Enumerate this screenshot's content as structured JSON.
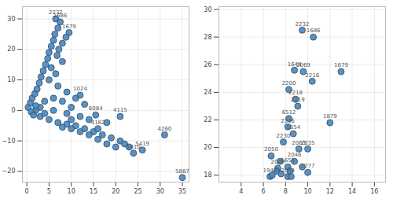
{
  "chart_data": [
    {
      "type": "scatter",
      "color": "#4a86b8",
      "marker": "circle",
      "grid": true,
      "xlim": [
        -1,
        36.5
      ],
      "ylim": [
        -23.5,
        34
      ],
      "xticks": [
        0,
        5,
        10,
        15,
        20,
        25,
        30,
        35
      ],
      "yticks": [
        -20,
        -10,
        0,
        10,
        20,
        30
      ],
      "x": [
        0.3,
        0.8,
        1.2,
        1.8,
        2.3,
        2.8,
        3.2,
        3.7,
        4.2,
        4.7,
        5,
        5.5,
        6,
        6.3,
        7,
        6.5,
        7.5,
        9.5,
        8.8,
        8,
        7.2,
        6.8,
        8,
        5.5,
        6.5,
        5,
        7,
        9,
        11,
        12,
        13,
        10,
        8,
        6,
        4,
        3,
        2,
        1,
        1.5,
        3,
        5,
        7,
        9,
        11,
        13,
        15,
        17,
        19,
        21,
        22,
        23,
        24,
        26,
        20,
        18,
        16,
        14,
        12,
        10,
        8,
        15.5,
        21,
        16,
        31,
        35,
        18,
        12,
        9,
        6,
        14,
        10,
        4,
        2
      ],
      "y": [
        1,
        2.5,
        4,
        5.5,
        7,
        9,
        11,
        13,
        15,
        17,
        19,
        21,
        23,
        25,
        27,
        30,
        29,
        25.5,
        24,
        22,
        20,
        18,
        16,
        14,
        12,
        10,
        8,
        6,
        4,
        5,
        2,
        1,
        3,
        4,
        3,
        1,
        0,
        -0.5,
        -1.5,
        -2,
        -3,
        -4,
        -4.5,
        -5,
        -6,
        -7,
        -8,
        -9,
        -10,
        -11,
        -12,
        -14,
        -13,
        -12,
        -11,
        -9.5,
        -8,
        -7,
        -6,
        -5.5,
        -1.5,
        -2,
        -6,
        -8,
        -22,
        -4,
        -2,
        -1,
        0,
        -3,
        -3,
        -1,
        1.5
      ],
      "labels": [
        null,
        null,
        null,
        null,
        null,
        null,
        null,
        null,
        null,
        null,
        null,
        null,
        null,
        null,
        null,
        "2232",
        "1686",
        "1679",
        null,
        null,
        null,
        null,
        null,
        null,
        null,
        null,
        null,
        null,
        null,
        "1024",
        null,
        null,
        null,
        null,
        null,
        null,
        null,
        null,
        null,
        null,
        null,
        null,
        null,
        null,
        null,
        null,
        null,
        null,
        null,
        null,
        null,
        "5410",
        "5419",
        null,
        null,
        null,
        null,
        null,
        null,
        null,
        "6084",
        "4115",
        "4182",
        "4260",
        "5887",
        null,
        null,
        null,
        null,
        null,
        null,
        null,
        null
      ]
    },
    {
      "type": "scatter",
      "color": "#4a86b8",
      "marker": "circle",
      "grid": true,
      "xlim": [
        2,
        17
      ],
      "ylim": [
        17.5,
        30.2
      ],
      "xticks": [
        4,
        6,
        8,
        10,
        12,
        14,
        16
      ],
      "yticks": [
        18,
        20,
        22,
        24,
        26,
        28,
        30
      ],
      "x": [
        9.5,
        10.5,
        13,
        12,
        8.8,
        9.6,
        10.4,
        8.3,
        8.9,
        9.1,
        8.3,
        8.2,
        8.7,
        7.8,
        9.2,
        10,
        6.7,
        8.8,
        7.3,
        8.2,
        10,
        6.6,
        8.2,
        6.8,
        7.2,
        7.6,
        8.4,
        8.5,
        7.5,
        9.5
      ],
      "y": [
        28.5,
        28,
        25.5,
        21.8,
        25.6,
        25.5,
        24.8,
        24.2,
        23.5,
        23,
        22.1,
        21.5,
        21,
        20.4,
        19.9,
        19.9,
        19.4,
        19,
        18.5,
        18.6,
        18.2,
        17.9,
        17.9,
        18,
        18.3,
        18.1,
        18.3,
        17.9,
        19,
        18.6
      ],
      "labels": [
        "2232",
        "1686",
        "1679",
        "1879",
        "1648",
        "2069",
        "2216",
        "2200",
        "2218",
        "2219",
        "6512",
        "2236",
        "1654",
        "2230",
        "2063",
        "2035",
        "2050",
        "2046",
        "2049",
        "1653",
        "2277",
        "1940",
        "2044",
        null,
        null,
        null,
        null,
        null,
        null,
        null
      ]
    }
  ]
}
